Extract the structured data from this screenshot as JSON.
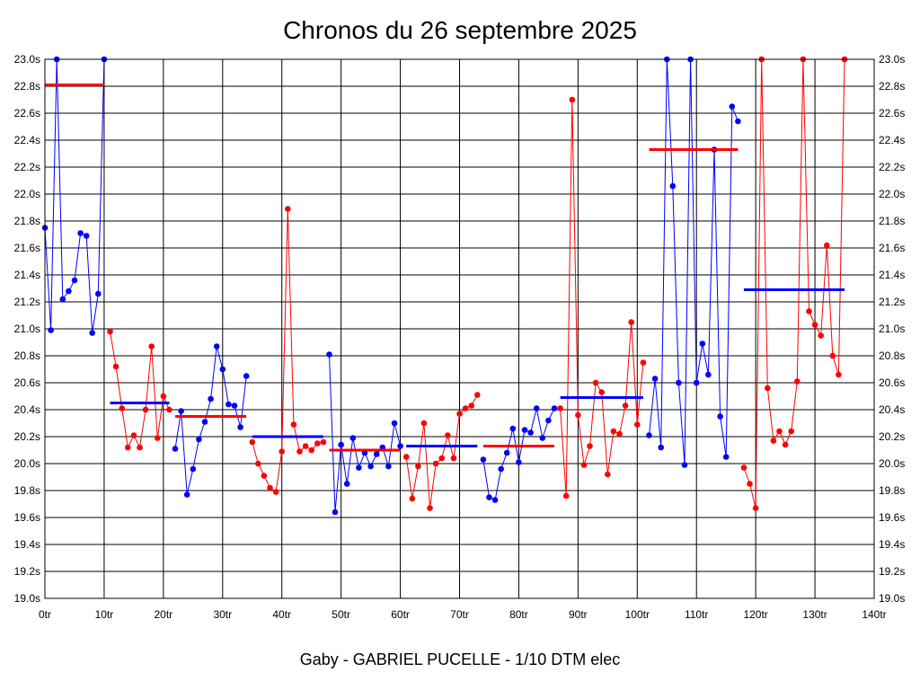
{
  "chart_data": {
    "type": "line",
    "title": "Chronos du 26 septembre 2025",
    "subtitle": "Gaby - GABRIEL PUCELLE - 1/10 DTM elec",
    "xlabel": "",
    "ylabel": "",
    "xlim": [
      0,
      140
    ],
    "ylim": [
      19.0,
      23.0
    ],
    "x_ticks": [
      0,
      10,
      20,
      30,
      40,
      50,
      60,
      70,
      80,
      90,
      100,
      110,
      120,
      130,
      140
    ],
    "x_tick_labels": [
      "0tr",
      "10tr",
      "20tr",
      "30tr",
      "40tr",
      "50tr",
      "60tr",
      "70tr",
      "80tr",
      "90tr",
      "100tr",
      "110tr",
      "120tr",
      "130tr",
      "140tr"
    ],
    "y_ticks": [
      19.0,
      19.2,
      19.4,
      19.6,
      19.8,
      20.0,
      20.2,
      20.4,
      20.6,
      20.8,
      21.0,
      21.2,
      21.4,
      21.6,
      21.8,
      22.0,
      22.2,
      22.4,
      22.6,
      22.8,
      23.0
    ],
    "y_tick_labels": [
      "19.0s",
      "19.2s",
      "19.4s",
      "19.6s",
      "19.8s",
      "20.0s",
      "20.2s",
      "20.4s",
      "20.6s",
      "20.8s",
      "21.0s",
      "21.2s",
      "21.4s",
      "21.6s",
      "21.8s",
      "22.0s",
      "22.2s",
      "22.4s",
      "22.6s",
      "22.8s",
      "23.0s"
    ],
    "grid": true,
    "colors": {
      "blue": "#0000ff",
      "red": "#ff0000",
      "grid": "#000000",
      "background": "#ffffff"
    },
    "series": [
      {
        "color": "#0000ff",
        "start": 0,
        "values": [
          21.75,
          20.99,
          23.0,
          21.22,
          21.28,
          21.36,
          21.71,
          21.69,
          20.97,
          21.26,
          23.0
        ]
      },
      {
        "color": "#ff0000",
        "start": 11,
        "values": [
          20.98,
          20.72,
          20.41,
          20.12,
          20.21,
          20.12,
          20.4,
          20.87,
          20.19,
          20.5,
          20.4
        ]
      },
      {
        "color": "#0000ff",
        "start": 22,
        "values": [
          20.11,
          20.39,
          19.77,
          19.96,
          20.18,
          20.31,
          20.48,
          20.87,
          20.7,
          20.44,
          20.43,
          20.27,
          20.65
        ]
      },
      {
        "color": "#ff0000",
        "start": 35,
        "values": [
          20.16,
          20.0,
          19.91,
          19.82,
          19.79,
          20.09,
          21.89,
          20.29,
          20.09,
          20.13,
          20.1,
          20.15,
          20.16
        ]
      },
      {
        "color": "#0000ff",
        "start": 48,
        "values": [
          20.81,
          19.64,
          20.14,
          19.85,
          20.19,
          19.97,
          20.08,
          19.98,
          20.07,
          20.12,
          19.98,
          20.3,
          20.13
        ]
      },
      {
        "color": "#ff0000",
        "start": 61,
        "values": [
          20.05,
          19.74,
          19.98,
          20.3,
          19.67,
          20.0,
          20.04,
          20.21,
          20.04,
          20.37,
          20.41,
          20.43,
          20.51
        ]
      },
      {
        "color": "#0000ff",
        "start": 74,
        "values": [
          20.03,
          19.75,
          19.73,
          19.96,
          20.08,
          20.26,
          20.01,
          20.25,
          20.23,
          20.41,
          20.19,
          20.32,
          20.41
        ]
      },
      {
        "color": "#ff0000",
        "start": 87,
        "values": [
          20.41,
          19.76,
          22.7,
          20.36,
          19.99,
          20.13,
          20.6,
          20.53,
          19.92,
          20.24,
          20.22,
          20.43,
          21.05,
          20.29,
          20.75
        ]
      },
      {
        "color": "#0000ff",
        "start": 102,
        "values": [
          20.21,
          20.63,
          20.12,
          23.0,
          22.06,
          20.6,
          19.99,
          23.0,
          20.6,
          20.89,
          20.66,
          22.33,
          20.35,
          20.05,
          22.65,
          22.54
        ]
      },
      {
        "color": "#ff0000",
        "start": 118,
        "values": [
          19.97,
          19.85,
          19.67,
          23.0,
          20.56,
          20.17,
          20.24,
          20.14,
          20.24,
          20.61,
          23.0,
          21.13,
          21.03,
          20.95,
          21.62,
          20.8,
          20.66,
          23.0
        ]
      }
    ],
    "averages": [
      {
        "color": "#ff0000",
        "x_start": 0,
        "x_end": 10,
        "value": 22.81
      },
      {
        "color": "#0000ff",
        "x_start": 11,
        "x_end": 21,
        "value": 20.45
      },
      {
        "color": "#ff0000",
        "x_start": 22,
        "x_end": 34,
        "value": 20.35
      },
      {
        "color": "#0000ff",
        "x_start": 35,
        "x_end": 47,
        "value": 20.2
      },
      {
        "color": "#ff0000",
        "x_start": 48,
        "x_end": 60,
        "value": 20.1
      },
      {
        "color": "#0000ff",
        "x_start": 61,
        "x_end": 73,
        "value": 20.13
      },
      {
        "color": "#ff0000",
        "x_start": 74,
        "x_end": 86,
        "value": 20.13
      },
      {
        "color": "#0000ff",
        "x_start": 87,
        "x_end": 101,
        "value": 20.49
      },
      {
        "color": "#ff0000",
        "x_start": 102,
        "x_end": 117,
        "value": 22.33
      },
      {
        "color": "#0000ff",
        "x_start": 118,
        "x_end": 135,
        "value": 21.29
      }
    ]
  }
}
